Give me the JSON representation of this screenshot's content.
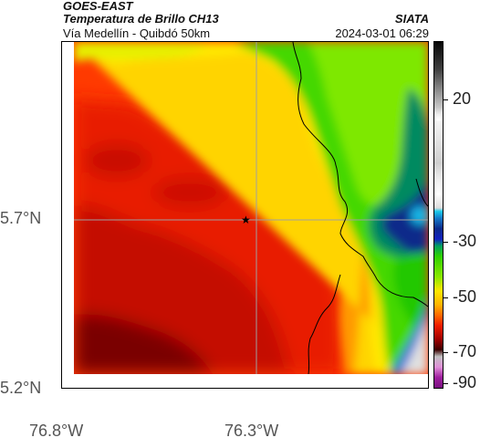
{
  "header": {
    "satellite": "GOES-EAST",
    "product": "Temperatura de Brillo CH13",
    "region": "Vía Medellín - Quibdó 50km",
    "agency": "SIATA",
    "datetime": "2024-03-01 06:29"
  },
  "axes": {
    "lat_ticks": [
      "5.7°N",
      "5.2°N"
    ],
    "lon_ticks": [
      "76.8°W",
      "76.3°W"
    ]
  },
  "colorbar": {
    "ticks": [
      "20",
      "-30",
      "-50",
      "-70",
      "-90"
    ]
  },
  "marker": {
    "symbol": "★",
    "name": "location-star"
  },
  "colors": {
    "hot": "#a00000",
    "warm": "#ff2a00",
    "mid": "#ffd000",
    "green": "#3cd300",
    "cold": "#0a2a8a",
    "cyan": "#18b8e8",
    "gray": "#e0e0e0"
  }
}
